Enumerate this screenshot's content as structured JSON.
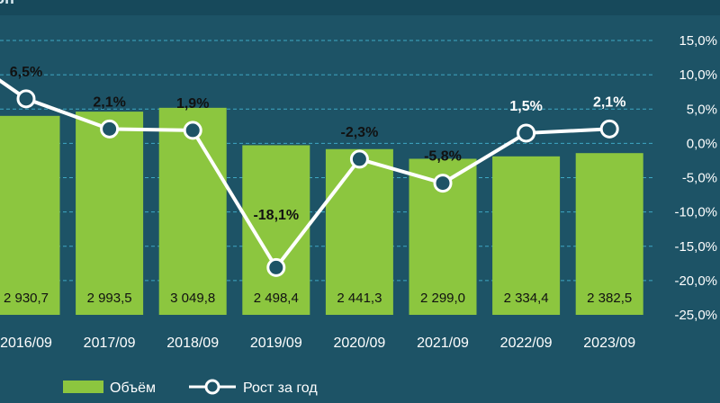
{
  "title": "бн",
  "chart_data": {
    "type": "bar+line",
    "categories": [
      "2016/09",
      "2017/09",
      "2018/09",
      "2019/09",
      "2020/09",
      "2021/09",
      "2022/09",
      "2023/09"
    ],
    "series": [
      {
        "name": "Объём",
        "type": "bar",
        "values": [
          2930.7,
          2993.5,
          3049.8,
          2498.4,
          2441.3,
          2299.0,
          2334.4,
          2382.5
        ],
        "labels": [
          "2 930,7",
          "2 993,5",
          "3 049,8",
          "2 498,4",
          "2 441,3",
          "2 299,0",
          "2 334,4",
          "2 382,5"
        ],
        "color": "#8cc63f"
      },
      {
        "name": "Рост за год",
        "type": "line",
        "axis": "right",
        "values": [
          6.5,
          2.1,
          1.9,
          -18.1,
          -2.3,
          -5.8,
          1.5,
          2.1
        ],
        "labels": [
          "6,5%",
          "2,1%",
          "1,9%",
          "-18,1%",
          "-2,3%",
          "-5,8%",
          "1,5%",
          "2,1%"
        ],
        "color": "#ffffff"
      }
    ],
    "y2_ticks": [
      "15,0%",
      "10,0%",
      "5,0%",
      "0,0%",
      "-5,0%",
      "-10,0%",
      "-15,0%",
      "-20,0%",
      "-25,0%"
    ],
    "y2lim": [
      -25,
      15
    ],
    "grid": "dashed horizontal",
    "legend": "bottom"
  }
}
